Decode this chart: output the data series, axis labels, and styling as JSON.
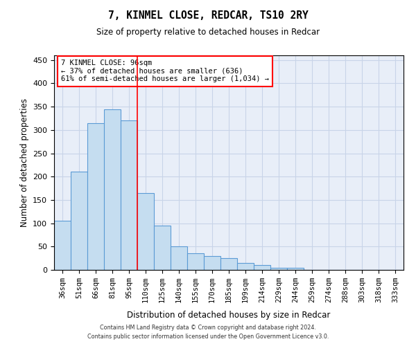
{
  "title1": "7, KINMEL CLOSE, REDCAR, TS10 2RY",
  "title2": "Size of property relative to detached houses in Redcar",
  "xlabel": "Distribution of detached houses by size in Redcar",
  "ylabel": "Number of detached properties",
  "categories": [
    "36sqm",
    "51sqm",
    "66sqm",
    "81sqm",
    "95sqm",
    "110sqm",
    "125sqm",
    "140sqm",
    "155sqm",
    "170sqm",
    "185sqm",
    "199sqm",
    "214sqm",
    "229sqm",
    "244sqm",
    "259sqm",
    "274sqm",
    "288sqm",
    "303sqm",
    "318sqm",
    "333sqm"
  ],
  "values": [
    105,
    210,
    315,
    345,
    320,
    165,
    95,
    50,
    35,
    30,
    25,
    15,
    10,
    5,
    5,
    0,
    0,
    0,
    0,
    0,
    0
  ],
  "bar_color": "#c5ddf0",
  "bar_edge_color": "#5b9bd5",
  "grid_color": "#c8d4e8",
  "background_color": "#e8eef8",
  "annotation_text": "7 KINMEL CLOSE: 96sqm\n← 37% of detached houses are smaller (636)\n61% of semi-detached houses are larger (1,034) →",
  "annotation_box_color": "white",
  "annotation_box_edge": "red",
  "vline_x": 4.5,
  "vline_color": "red",
  "ylim": [
    0,
    460
  ],
  "yticks": [
    0,
    50,
    100,
    150,
    200,
    250,
    300,
    350,
    400,
    450
  ],
  "footer1": "Contains HM Land Registry data © Crown copyright and database right 2024.",
  "footer2": "Contains public sector information licensed under the Open Government Licence v3.0."
}
